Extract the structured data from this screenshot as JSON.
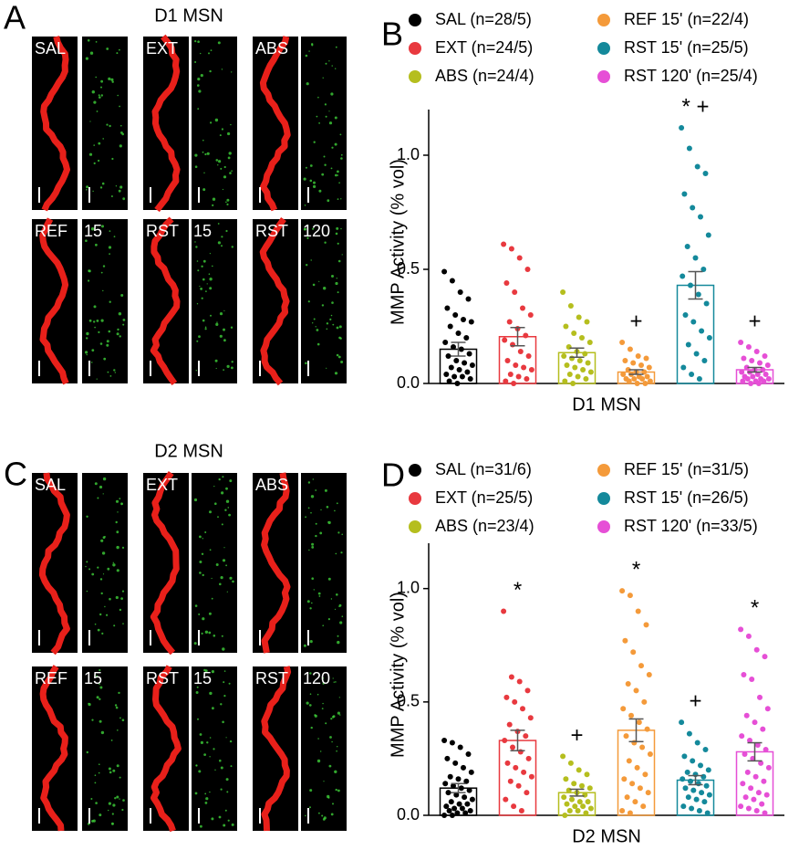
{
  "figure": {
    "A": {
      "label": "A",
      "title": "D1 MSN",
      "images": [
        {
          "label": "SAL"
        },
        {
          "label": "EXT"
        },
        {
          "label": "ABS"
        },
        {
          "label": "REF",
          "label2": "15"
        },
        {
          "label": "RST",
          "label2": "15"
        },
        {
          "label": "RST",
          "label2": "120"
        }
      ]
    },
    "C": {
      "label": "C",
      "title": "D2 MSN",
      "images": [
        {
          "label": "SAL"
        },
        {
          "label": "EXT"
        },
        {
          "label": "ABS"
        },
        {
          "label": "REF",
          "label2": "15"
        },
        {
          "label": "RST",
          "label2": "15"
        },
        {
          "label": "RST",
          "label2": "120"
        }
      ]
    }
  },
  "chart_data": [
    {
      "type": "bar",
      "panel_label": "B",
      "xlabel": "D1 MSN",
      "ylabel": "MMP Activity (% vol)",
      "ylim": [
        0,
        1.2
      ],
      "yticks": [
        {
          "value": 0,
          "label": "0.0"
        },
        {
          "value": 0.5,
          "label": "0.5"
        },
        {
          "value": 1,
          "label": "1.0"
        }
      ],
      "legend_position": "top",
      "series": [
        {
          "name": "SAL (n=28/5)",
          "color": "#000000",
          "mean": 0.15,
          "sem": 0.03,
          "points": [
            0.49,
            0.45,
            0.4,
            0.37,
            0.33,
            0.3,
            0.28,
            0.27,
            0.25,
            0.22,
            0.2,
            0.18,
            0.16,
            0.15,
            0.13,
            0.12,
            0.1,
            0.09,
            0.08,
            0.07,
            0.06,
            0.05,
            0.04,
            0.03,
            0.03,
            0.02,
            0.01,
            0.0
          ]
        },
        {
          "name": "EXT (n=24/5)",
          "color": "#e8393f",
          "mean": 0.205,
          "sem": 0.04,
          "points": [
            0.61,
            0.59,
            0.55,
            0.5,
            0.44,
            0.4,
            0.33,
            0.3,
            0.27,
            0.24,
            0.21,
            0.19,
            0.17,
            0.14,
            0.12,
            0.1,
            0.08,
            0.07,
            0.06,
            0.04,
            0.03,
            0.02,
            0.01,
            0.0
          ]
        },
        {
          "name": "ABS (n=24/4)",
          "color": "#b5be1e",
          "mean": 0.135,
          "sem": 0.02,
          "points": [
            0.4,
            0.34,
            0.29,
            0.27,
            0.25,
            0.22,
            0.2,
            0.18,
            0.16,
            0.14,
            0.13,
            0.12,
            0.11,
            0.1,
            0.09,
            0.08,
            0.07,
            0.06,
            0.05,
            0.04,
            0.03,
            0.02,
            0.01,
            0.0
          ]
        },
        {
          "name": "REF 15' (n=22/4)",
          "color": "#f49a3a",
          "mean": 0.05,
          "sem": 0.01,
          "annotation": "+",
          "points": [
            0.18,
            0.15,
            0.12,
            0.11,
            0.1,
            0.09,
            0.08,
            0.07,
            0.06,
            0.05,
            0.05,
            0.04,
            0.04,
            0.03,
            0.03,
            0.02,
            0.02,
            0.02,
            0.01,
            0.01,
            0.0,
            0.0
          ]
        },
        {
          "name": "RST 15' (n=25/5)",
          "color": "#14899b",
          "mean": 0.43,
          "sem": 0.06,
          "annotation": "* +",
          "points": [
            1.12,
            1.03,
            0.95,
            0.92,
            0.83,
            0.77,
            0.73,
            0.65,
            0.6,
            0.55,
            0.5,
            0.47,
            0.43,
            0.39,
            0.35,
            0.3,
            0.27,
            0.23,
            0.2,
            0.17,
            0.13,
            0.1,
            0.07,
            0.04,
            0.02
          ]
        },
        {
          "name": "RST 120' (n=25/4)",
          "color": "#e64fd6",
          "mean": 0.06,
          "sem": 0.01,
          "annotation": "+",
          "points": [
            0.18,
            0.16,
            0.14,
            0.12,
            0.11,
            0.1,
            0.09,
            0.08,
            0.07,
            0.06,
            0.06,
            0.05,
            0.05,
            0.04,
            0.04,
            0.03,
            0.03,
            0.02,
            0.02,
            0.02,
            0.01,
            0.01,
            0.01,
            0.0,
            0.0
          ]
        }
      ]
    },
    {
      "type": "bar",
      "panel_label": "D",
      "xlabel": "D2 MSN",
      "ylabel": "MMP Activity (% vol)",
      "ylim": [
        0,
        1.2
      ],
      "yticks": [
        {
          "value": 0,
          "label": "0.0"
        },
        {
          "value": 0.5,
          "label": "0.5"
        },
        {
          "value": 1,
          "label": "1.0"
        }
      ],
      "legend_position": "top",
      "series": [
        {
          "name": "SAL (n=31/6)",
          "color": "#000000",
          "mean": 0.12,
          "sem": 0.02,
          "points": [
            0.33,
            0.32,
            0.3,
            0.27,
            0.25,
            0.23,
            0.21,
            0.19,
            0.17,
            0.16,
            0.15,
            0.14,
            0.13,
            0.12,
            0.11,
            0.1,
            0.09,
            0.08,
            0.07,
            0.06,
            0.05,
            0.05,
            0.04,
            0.03,
            0.03,
            0.02,
            0.02,
            0.01,
            0.01,
            0.0,
            0.0
          ]
        },
        {
          "name": "EXT (n=25/5)",
          "color": "#e8393f",
          "mean": 0.33,
          "sem": 0.045,
          "annotation": "*",
          "points": [
            0.9,
            0.61,
            0.59,
            0.55,
            0.52,
            0.5,
            0.47,
            0.43,
            0.4,
            0.37,
            0.35,
            0.33,
            0.3,
            0.28,
            0.25,
            0.23,
            0.21,
            0.19,
            0.17,
            0.15,
            0.13,
            0.1,
            0.07,
            0.04,
            0.02
          ]
        },
        {
          "name": "ABS (n=23/4)",
          "color": "#b5be1e",
          "mean": 0.1,
          "sem": 0.015,
          "annotation": "+",
          "points": [
            0.26,
            0.23,
            0.2,
            0.18,
            0.16,
            0.14,
            0.13,
            0.12,
            0.11,
            0.1,
            0.09,
            0.08,
            0.07,
            0.06,
            0.06,
            0.05,
            0.04,
            0.04,
            0.03,
            0.02,
            0.02,
            0.01,
            0.0
          ]
        },
        {
          "name": "REF 15' (n=31/5)",
          "color": "#f49a3a",
          "mean": 0.375,
          "sem": 0.05,
          "annotation": "*",
          "points": [
            0.99,
            0.97,
            0.9,
            0.84,
            0.77,
            0.72,
            0.66,
            0.62,
            0.58,
            0.55,
            0.5,
            0.47,
            0.44,
            0.41,
            0.38,
            0.35,
            0.32,
            0.3,
            0.27,
            0.24,
            0.21,
            0.18,
            0.16,
            0.14,
            0.12,
            0.1,
            0.08,
            0.06,
            0.04,
            0.02,
            0.01
          ]
        },
        {
          "name": "RST 15' (n=26/5)",
          "color": "#14899b",
          "mean": 0.155,
          "sem": 0.02,
          "annotation": "+",
          "points": [
            0.41,
            0.36,
            0.32,
            0.29,
            0.26,
            0.24,
            0.22,
            0.2,
            0.19,
            0.18,
            0.17,
            0.16,
            0.15,
            0.14,
            0.13,
            0.12,
            0.11,
            0.1,
            0.09,
            0.08,
            0.07,
            0.06,
            0.04,
            0.03,
            0.02,
            0.01
          ]
        },
        {
          "name": "RST 120' (n=33/5)",
          "color": "#e64fd6",
          "mean": 0.28,
          "sem": 0.04,
          "annotation": "*",
          "points": [
            0.82,
            0.79,
            0.73,
            0.7,
            0.62,
            0.6,
            0.52,
            0.47,
            0.44,
            0.41,
            0.38,
            0.35,
            0.33,
            0.31,
            0.29,
            0.27,
            0.25,
            0.23,
            0.21,
            0.19,
            0.17,
            0.15,
            0.14,
            0.12,
            0.1,
            0.09,
            0.08,
            0.07,
            0.05,
            0.04,
            0.03,
            0.02,
            0.01
          ]
        }
      ]
    }
  ]
}
